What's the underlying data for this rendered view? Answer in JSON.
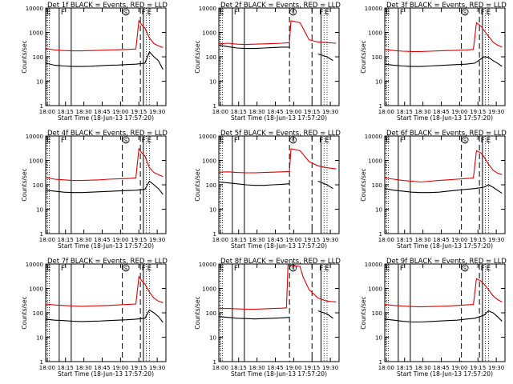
{
  "figure": {
    "ylabel": "Counts/sec",
    "xlabel": "Start Time (18-Jun-13 17:57:20)",
    "markers": {
      "F": "F",
      "S": "S",
      "E": "E"
    },
    "colors": {
      "events": "#000000",
      "lld": "#e00000"
    }
  },
  "chart_data": [
    {
      "type": "line",
      "title": "Det 1f BLACK = Events, RED = LLD",
      "xticks": [
        "18:00",
        "18:15",
        "18:30",
        "18:45",
        "19:00",
        "19:15",
        "19:30"
      ],
      "yticks": [
        "1",
        "10",
        "100",
        "1000",
        "10000"
      ],
      "ylim": [
        1,
        10000
      ],
      "x_range_min": [
        0,
        40
      ],
      "events": {
        "x": [
          0,
          3,
          6,
          9,
          12,
          15,
          18,
          21,
          24,
          27,
          30,
          33,
          34.5,
          36,
          37.5,
          39
        ],
        "y": [
          55,
          45,
          42,
          40,
          40,
          41,
          43,
          45,
          46,
          48,
          50,
          55,
          160,
          100,
          70,
          30
        ]
      },
      "lld": {
        "x": [
          0,
          3,
          6,
          9,
          12,
          15,
          18,
          21,
          24,
          27,
          30,
          31,
          32,
          33,
          34.5,
          36,
          37.5,
          39
        ],
        "y": [
          220,
          190,
          180,
          175,
          175,
          180,
          185,
          190,
          195,
          200,
          210,
          3000,
          2000,
          1500,
          600,
          350,
          280,
          240
        ]
      },
      "vlines_solid": [
        4.5,
        8.5,
        32.5
      ],
      "vlines_dashed": [
        25.5,
        31.5
      ],
      "vlines_dotted": [
        33.5,
        34.5
      ]
    },
    {
      "type": "line",
      "title": "Det 2f BLACK = Events, RED = LLD",
      "xticks": [
        "18:00",
        "18:15",
        "18:30",
        "18:45",
        "19:00",
        "19:15",
        "19:30"
      ],
      "yticks": [
        "1",
        "10",
        "100",
        "1000",
        "10000"
      ],
      "ylim": [
        1,
        10000
      ],
      "x_range_min": [
        0,
        40
      ],
      "events": {
        "x": [
          0,
          3,
          6,
          9,
          12,
          15,
          18,
          21,
          23.5,
          27,
          30,
          33,
          36,
          38
        ],
        "y": [
          300,
          260,
          230,
          220,
          220,
          230,
          240,
          250,
          250,
          0,
          0,
          130,
          100,
          70
        ]
      },
      "lld": {
        "x": [
          0,
          3,
          6,
          9,
          12,
          15,
          18,
          21,
          23.5,
          24,
          27,
          28,
          30,
          33,
          36,
          39
        ],
        "y": [
          340,
          360,
          330,
          320,
          330,
          340,
          350,
          360,
          380,
          3000,
          2500,
          1500,
          500,
          400,
          380,
          360
        ]
      },
      "vlines_solid": [
        4.5,
        8.5,
        34
      ],
      "vlines_dashed": [
        23.5,
        31
      ],
      "vlines_dotted": [
        35,
        36
      ]
    },
    {
      "type": "line",
      "title": "Det 3f BLACK = Events, RED = LLD",
      "xticks": [
        "18:00",
        "18:15",
        "18:30",
        "18:45",
        "19:00",
        "19:15",
        "19:30"
      ],
      "yticks": [
        "1",
        "10",
        "100",
        "1000",
        "10000"
      ],
      "ylim": [
        1,
        10000
      ],
      "x_range_min": [
        0,
        40
      ],
      "events": {
        "x": [
          0,
          3,
          6,
          9,
          12,
          15,
          18,
          21,
          24,
          27,
          30,
          33,
          34.5,
          36,
          37.5,
          39
        ],
        "y": [
          50,
          45,
          42,
          40,
          40,
          42,
          44,
          46,
          48,
          50,
          55,
          100,
          95,
          70,
          55,
          40
        ]
      },
      "lld": {
        "x": [
          0,
          3,
          6,
          9,
          12,
          15,
          18,
          21,
          24,
          27,
          29.5,
          30.5,
          32,
          33,
          34.5,
          36,
          37.5,
          39
        ],
        "y": [
          200,
          180,
          170,
          165,
          165,
          170,
          175,
          180,
          185,
          190,
          200,
          2500,
          1800,
          1200,
          700,
          400,
          300,
          250
        ]
      },
      "vlines_solid": [
        4.5,
        8.5,
        32.5
      ],
      "vlines_dashed": [
        25.5,
        31.5
      ],
      "vlines_dotted": [
        33.5,
        34.5
      ]
    },
    {
      "type": "line",
      "title": "Det 4f BLACK = Events, RED = LLD",
      "xticks": [
        "18:00",
        "18:15",
        "18:30",
        "18:45",
        "19:00",
        "19:15",
        "19:30"
      ],
      "yticks": [
        "1",
        "10",
        "100",
        "1000",
        "10000"
      ],
      "ylim": [
        1,
        10000
      ],
      "x_range_min": [
        0,
        40
      ],
      "events": {
        "x": [
          0,
          3,
          6,
          9,
          12,
          15,
          18,
          21,
          24,
          27,
          30,
          33,
          34.5,
          36,
          37.5,
          39
        ],
        "y": [
          60,
          55,
          50,
          48,
          48,
          50,
          52,
          54,
          56,
          58,
          60,
          65,
          140,
          100,
          70,
          40
        ]
      },
      "lld": {
        "x": [
          0,
          3,
          6,
          9,
          12,
          15,
          18,
          21,
          24,
          27,
          30,
          31,
          32,
          33,
          34.5,
          36,
          37.5,
          39
        ],
        "y": [
          200,
          170,
          160,
          150,
          150,
          155,
          160,
          170,
          175,
          180,
          190,
          3000,
          2000,
          1500,
          500,
          320,
          260,
          220
        ]
      },
      "vlines_solid": [
        4.5,
        8.5,
        32.5
      ],
      "vlines_dashed": [
        25.5,
        31.5
      ],
      "vlines_dotted": [
        33.5,
        34.5
      ]
    },
    {
      "type": "line",
      "title": "Det 5f BLACK = Events, RED = LLD",
      "xticks": [
        "18:00",
        "18:15",
        "18:30",
        "18:45",
        "19:00",
        "19:15",
        "19:30"
      ],
      "yticks": [
        "1",
        "10",
        "100",
        "1000",
        "10000"
      ],
      "ylim": [
        1,
        10000
      ],
      "x_range_min": [
        0,
        40
      ],
      "events": {
        "x": [
          0,
          3,
          6,
          9,
          12,
          15,
          18,
          21,
          23.5,
          27,
          30,
          33,
          36,
          38
        ],
        "y": [
          130,
          120,
          110,
          100,
          95,
          95,
          100,
          105,
          110,
          0,
          0,
          140,
          100,
          70
        ]
      },
      "lld": {
        "x": [
          0,
          3,
          6,
          9,
          12,
          15,
          18,
          21,
          23.5,
          24,
          27,
          28,
          30,
          33,
          36,
          39
        ],
        "y": [
          330,
          340,
          320,
          310,
          310,
          320,
          330,
          340,
          350,
          3000,
          2500,
          1800,
          900,
          600,
          500,
          450
        ]
      },
      "vlines_solid": [
        4.5,
        8.5,
        34
      ],
      "vlines_dashed": [
        23.5,
        31
      ],
      "vlines_dotted": [
        35,
        36
      ]
    },
    {
      "type": "line",
      "title": "Det 6f BLACK = Events, RED = LLD",
      "xticks": [
        "18:00",
        "18:15",
        "18:30",
        "18:45",
        "19:00",
        "19:15",
        "19:30"
      ],
      "yticks": [
        "1",
        "10",
        "100",
        "1000",
        "10000"
      ],
      "ylim": [
        1,
        10000
      ],
      "x_range_min": [
        0,
        40
      ],
      "events": {
        "x": [
          0,
          3,
          6,
          9,
          12,
          15,
          18,
          21,
          24,
          27,
          30,
          33,
          34.5,
          36,
          37.5,
          39
        ],
        "y": [
          70,
          60,
          55,
          50,
          48,
          48,
          50,
          55,
          60,
          65,
          70,
          80,
          100,
          80,
          60,
          45
        ]
      },
      "lld": {
        "x": [
          0,
          3,
          6,
          9,
          12,
          15,
          18,
          21,
          24,
          27,
          29.5,
          30.5,
          32,
          33,
          34.5,
          36,
          37.5,
          39
        ],
        "y": [
          190,
          170,
          150,
          140,
          130,
          140,
          150,
          160,
          170,
          180,
          190,
          2500,
          2000,
          1400,
          700,
          400,
          300,
          260
        ]
      },
      "vlines_solid": [
        4.5,
        8.5,
        32.5
      ],
      "vlines_dashed": [
        25.5,
        31.5
      ],
      "vlines_dotted": [
        33.5,
        34.5
      ]
    },
    {
      "type": "line",
      "title": "Det 7f BLACK = Events, RED = LLD",
      "xticks": [
        "18:00",
        "18:15",
        "18:30",
        "18:45",
        "19:00",
        "19:15",
        "19:30"
      ],
      "yticks": [
        "1",
        "10",
        "100",
        "1000",
        "10000"
      ],
      "ylim": [
        1,
        10000
      ],
      "x_range_min": [
        0,
        40
      ],
      "events": {
        "x": [
          0,
          3,
          6,
          9,
          12,
          15,
          18,
          21,
          24,
          27,
          30,
          33,
          34.5,
          36,
          37.5,
          39
        ],
        "y": [
          55,
          50,
          48,
          45,
          44,
          45,
          46,
          48,
          50,
          52,
          55,
          60,
          130,
          100,
          70,
          40
        ]
      },
      "lld": {
        "x": [
          0,
          3,
          6,
          9,
          12,
          15,
          18,
          21,
          24,
          27,
          30,
          31,
          32,
          33,
          34.5,
          36,
          37.5,
          39
        ],
        "y": [
          230,
          210,
          200,
          190,
          185,
          190,
          195,
          200,
          210,
          220,
          230,
          3000,
          2000,
          1500,
          700,
          400,
          300,
          260
        ]
      },
      "vlines_solid": [
        4.5,
        8.5,
        32.5
      ],
      "vlines_dashed": [
        25.5,
        31.5
      ],
      "vlines_dotted": [
        33.5,
        34.5
      ]
    },
    {
      "type": "line",
      "title": "Det 8f BLACK = Events, RED = LLD",
      "xticks": [
        "18:00",
        "18:15",
        "18:30",
        "18:45",
        "19:00",
        "19:15",
        "19:30"
      ],
      "yticks": [
        "1",
        "10",
        "100",
        "1000",
        "10000"
      ],
      "ylim": [
        1,
        10000
      ],
      "x_range_min": [
        0,
        40
      ],
      "events": {
        "x": [
          0,
          3,
          6,
          9,
          12,
          15,
          18,
          21,
          23.5,
          27,
          30,
          33,
          36,
          38
        ],
        "y": [
          70,
          65,
          60,
          58,
          56,
          58,
          60,
          62,
          65,
          0,
          0,
          120,
          90,
          60
        ]
      },
      "lld": {
        "x": [
          0,
          3,
          6,
          9,
          12,
          15,
          18,
          21,
          22.5,
          23,
          23.5,
          27,
          28,
          30,
          33,
          36,
          39
        ],
        "y": [
          150,
          150,
          145,
          140,
          140,
          145,
          150,
          155,
          160,
          9000,
          9000,
          8000,
          3000,
          900,
          400,
          300,
          280
        ]
      },
      "vlines_solid": [
        4.5,
        8.5,
        34
      ],
      "vlines_dashed": [
        23.5,
        31
      ],
      "vlines_dotted": [
        35,
        36
      ]
    },
    {
      "type": "line",
      "title": "Det 9f BLACK = Events, RED = LLD",
      "xticks": [
        "18:00",
        "18:15",
        "18:30",
        "18:45",
        "19:00",
        "19:15",
        "19:30"
      ],
      "yticks": [
        "1",
        "10",
        "100",
        "1000",
        "10000"
      ],
      "ylim": [
        1,
        10000
      ],
      "x_range_min": [
        0,
        40
      ],
      "events": {
        "x": [
          0,
          3,
          6,
          9,
          12,
          15,
          18,
          21,
          24,
          27,
          30,
          33,
          34.5,
          36,
          37.5,
          39
        ],
        "y": [
          55,
          50,
          45,
          42,
          42,
          44,
          46,
          48,
          50,
          55,
          60,
          80,
          120,
          100,
          70,
          45
        ]
      },
      "lld": {
        "x": [
          0,
          3,
          6,
          9,
          12,
          15,
          18,
          21,
          24,
          27,
          29.5,
          30.5,
          32,
          33,
          34.5,
          36,
          37.5,
          39
        ],
        "y": [
          220,
          200,
          190,
          180,
          175,
          180,
          185,
          190,
          200,
          210,
          220,
          2500,
          2000,
          1500,
          900,
          500,
          350,
          280
        ]
      },
      "vlines_solid": [
        4.5,
        8.5,
        32.5
      ],
      "vlines_dashed": [
        25.5,
        31.5
      ],
      "vlines_dotted": [
        33.5,
        34.5
      ]
    }
  ]
}
